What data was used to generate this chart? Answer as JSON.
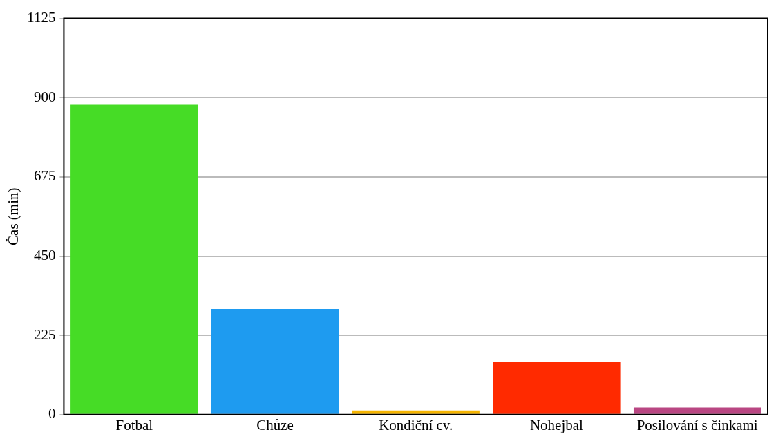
{
  "chart_data": {
    "type": "bar",
    "ylabel": "Čas (min)",
    "categories": [
      "Fotbal",
      "Chůze",
      "Kondiční cv.",
      "Nohejbal",
      "Posilování s činkami"
    ],
    "values": [
      880,
      300,
      12,
      150,
      20
    ],
    "colors": [
      "#46dc26",
      "#1e9bf0",
      "#f5b400",
      "#ff2a00",
      "#b94682"
    ],
    "ylim": [
      0,
      1125
    ],
    "yticks": [
      0,
      225,
      450,
      675,
      900,
      1125
    ],
    "grid": "y"
  }
}
